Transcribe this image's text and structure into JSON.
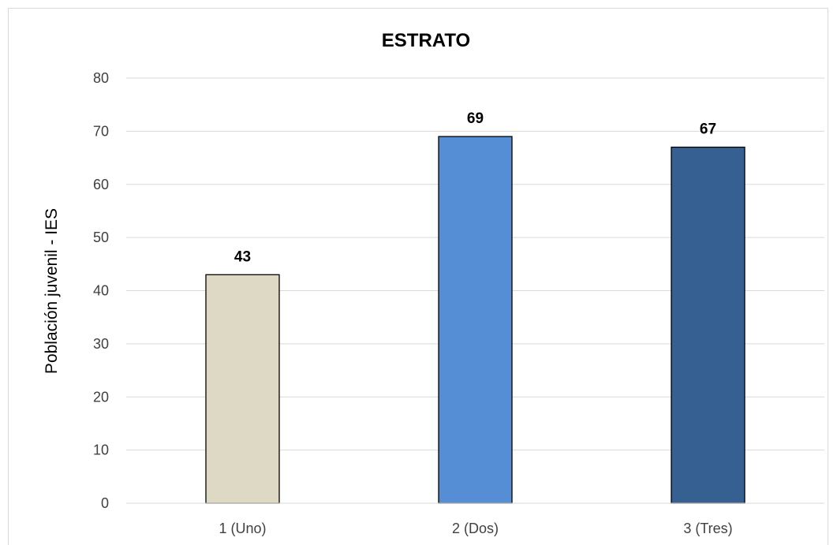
{
  "chart_data": {
    "type": "bar",
    "title": "ESTRATO",
    "xlabel": "",
    "ylabel": "Población juvenil - IES",
    "categories": [
      "1 (Uno)",
      "2 (Dos)",
      "3 (Tres)"
    ],
    "values": [
      43,
      69,
      67
    ],
    "data_labels": [
      "43",
      "69",
      "67"
    ],
    "colors": [
      "#DED9C4",
      "#558ED5",
      "#376092"
    ],
    "bar_border_color": "#000000",
    "ylim": [
      0,
      80
    ],
    "yticks": [
      0,
      10,
      20,
      30,
      40,
      50,
      60,
      70,
      80
    ],
    "ytick_labels": [
      "0",
      "10",
      "20",
      "30",
      "40",
      "50",
      "60",
      "70",
      "80"
    ],
    "grid": true,
    "legend": "none"
  }
}
